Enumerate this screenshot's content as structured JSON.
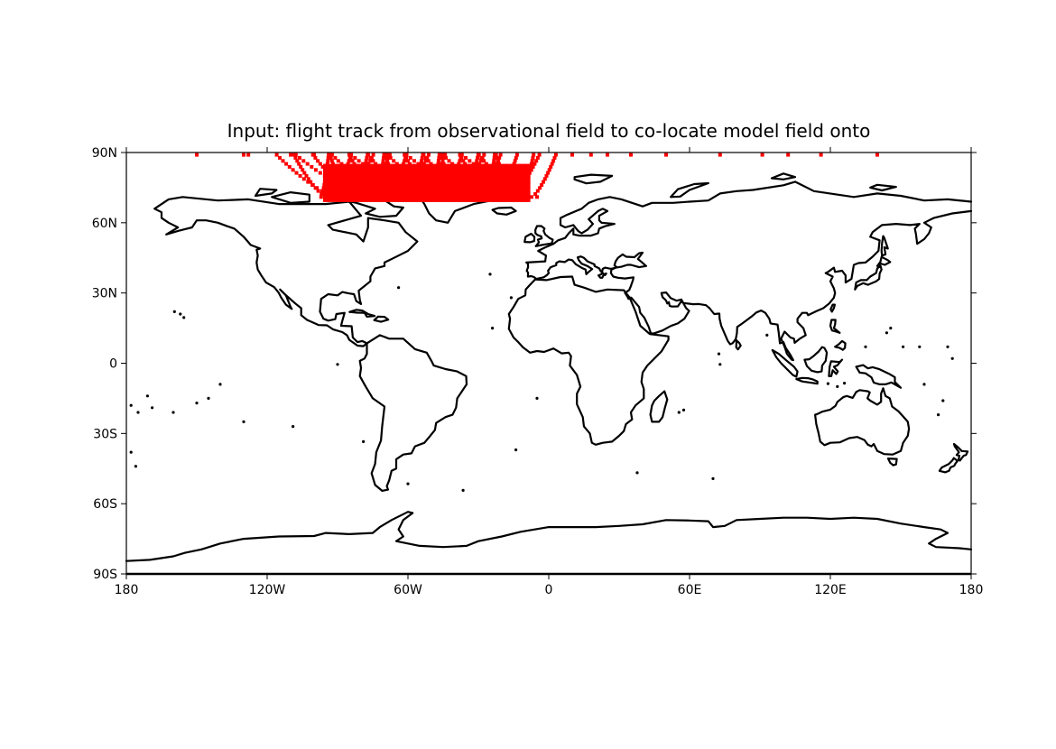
{
  "title": "Input: flight track from observational field to co-locate model field onto",
  "map": {
    "projection": "PlateCarree",
    "lon_range": [
      -180,
      180
    ],
    "lat_range": [
      -90,
      90
    ],
    "coastline_color": "#000000",
    "track_color": "#ff0000",
    "xticks": [
      {
        "value": -180,
        "label": "180"
      },
      {
        "value": -120,
        "label": "120W"
      },
      {
        "value": -60,
        "label": "60W"
      },
      {
        "value": 0,
        "label": "0"
      },
      {
        "value": 60,
        "label": "60E"
      },
      {
        "value": 120,
        "label": "120E"
      },
      {
        "value": 180,
        "label": "180"
      }
    ],
    "yticks": [
      {
        "value": 90,
        "label": "90N"
      },
      {
        "value": 60,
        "label": "60N"
      },
      {
        "value": 30,
        "label": "30N"
      },
      {
        "value": 0,
        "label": "0"
      },
      {
        "value": -30,
        "label": "30S"
      },
      {
        "value": -60,
        "label": "60S"
      },
      {
        "value": -90,
        "label": "90S"
      }
    ]
  },
  "flight_track": {
    "start_lon_range": [
      -97,
      -5
    ],
    "start_lat": 71,
    "end_lat": 89,
    "curve_count": 40,
    "sparse_points_lon": [
      -150,
      -130,
      -128,
      -110,
      -100,
      10,
      18,
      25,
      35,
      50,
      73,
      91,
      102,
      116,
      140
    ]
  }
}
